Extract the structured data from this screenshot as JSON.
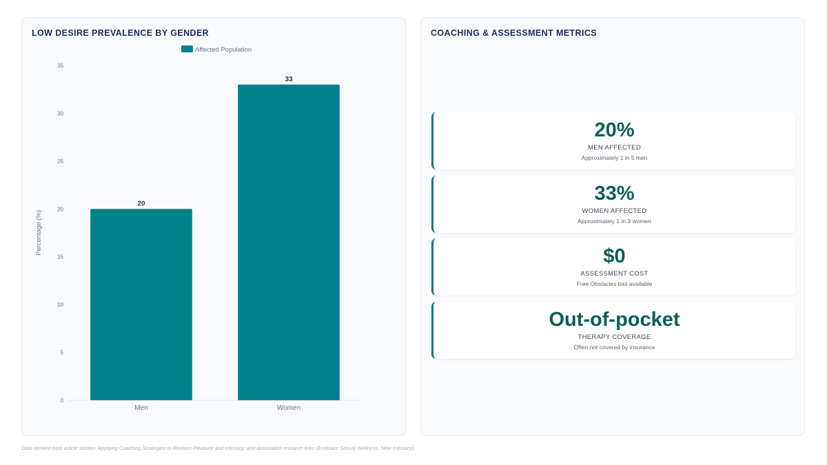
{
  "left_panel": {
    "title": "LOW DESIRE PREVALENCE BY GENDER"
  },
  "right_panel": {
    "title": "COACHING & ASSESSMENT METRICS",
    "metrics": [
      {
        "value": "20%",
        "label": "MEN AFFECTED",
        "desc": "Approximately 1 in 5 men"
      },
      {
        "value": "33%",
        "label": "WOMEN AFFECTED",
        "desc": "Approximately 1 in 3 women"
      },
      {
        "value": "$0",
        "label": "ASSESSMENT COST",
        "desc": "Free Obstacles tool available"
      },
      {
        "value": "Out-of-pocket",
        "label": "THERAPY COVERAGE",
        "desc": "Often not covered by insurance"
      }
    ]
  },
  "footnote": "Data derived from article section 'Applying Coaching Strategies to Reclaim Pleasure and Intimacy' and associated research links (Embrace Sexual Wellness, New Intimacy).",
  "colors": {
    "bar": "#00818a",
    "accent": "#137c73",
    "title": "#1e2a5a"
  },
  "chart_data": {
    "type": "bar",
    "title": "LOW DESIRE PREVALENCE BY GENDER",
    "categories": [
      "Men",
      "Women"
    ],
    "series": [
      {
        "name": "Affected Population",
        "values": [
          20,
          33
        ]
      }
    ],
    "ylabel": "Percentage (%)",
    "xlabel": "",
    "ylim": [
      0,
      35
    ],
    "yticks": [
      0,
      5,
      10,
      15,
      20,
      25,
      30,
      35
    ],
    "data_labels": true,
    "legend": "top-center",
    "grid": false
  }
}
